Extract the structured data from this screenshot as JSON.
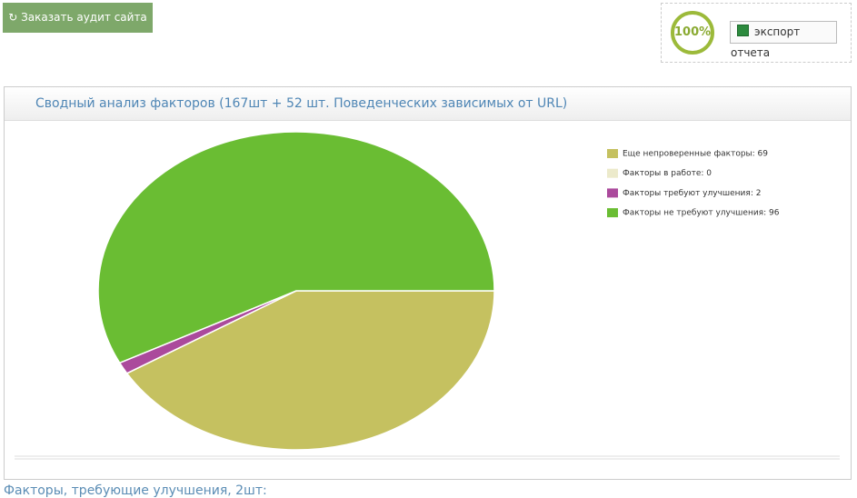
{
  "header": {
    "audit_button": "Заказать аудит сайта",
    "progress": "100%",
    "export_button": "экспорт отчета"
  },
  "panel": {
    "title": "Сводный анализ факторов (167шт + 52 шт. Поведенческих зависимых от URL)"
  },
  "footer": {
    "text": "Факторы, требующие улучшения, 2шт:"
  },
  "chart_data": {
    "type": "pie",
    "categories": [
      "Еще непроверенные факторы: 69",
      "Факторы в работе: 0",
      "Факторы требуют улучшения: 2",
      "Факторы не требуют улучшения: 96"
    ],
    "values": [
      69,
      0,
      2,
      96
    ],
    "colors": [
      "#c5c160",
      "#eceacb",
      "#ab4a9c",
      "#6abd33"
    ],
    "legend": "top-right"
  }
}
